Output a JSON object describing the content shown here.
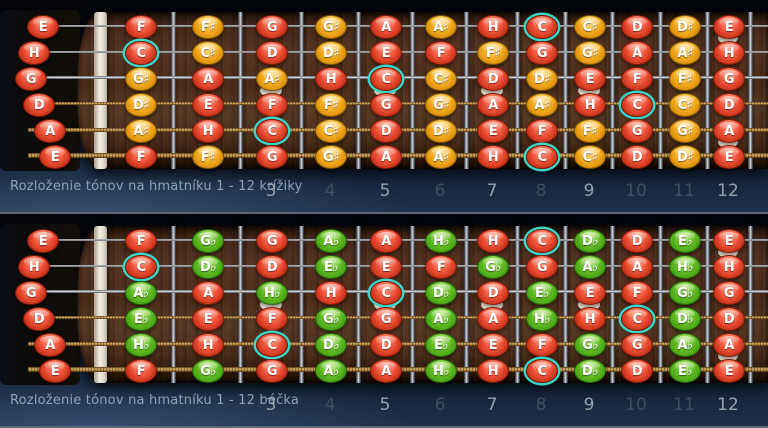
{
  "colors": {
    "natural_red": "#ef5238",
    "sharp_orange": "#f5ae22",
    "flat_green": "#63bd25",
    "highlight_ring": "#38d7c9",
    "caption_text": "#8fa2b8",
    "caption_text_hex": "#8ea2b8",
    "fret_number_bright": "#95a1ad",
    "fret_number_dim": "#3d4e60"
  },
  "highlighted_note": "C",
  "fretboards": [
    {
      "id": "sharps",
      "label": "Rozloženie tónov na hmatníku 1 - 12 krížiky",
      "open_notes": [
        "E",
        "H",
        "G",
        "D",
        "A",
        "E"
      ],
      "strings": [
        {
          "open": "E",
          "notes": [
            "F",
            "F♯",
            "G",
            "G♯",
            "A",
            "A♯",
            "H",
            "C",
            "C♯",
            "D",
            "D♯",
            "E"
          ]
        },
        {
          "open": "H",
          "notes": [
            "C",
            "C♯",
            "D",
            "D♯",
            "E",
            "F",
            "F♯",
            "G",
            "G♯",
            "A",
            "A♯",
            "H"
          ]
        },
        {
          "open": "G",
          "notes": [
            "G♯",
            "A",
            "A♯",
            "H",
            "C",
            "C♯",
            "D",
            "D♯",
            "E",
            "F",
            "F♯",
            "G"
          ]
        },
        {
          "open": "D",
          "notes": [
            "D♯",
            "E",
            "F",
            "F♯",
            "G",
            "G♯",
            "A",
            "A♯",
            "H",
            "C",
            "C♯",
            "D"
          ]
        },
        {
          "open": "A",
          "notes": [
            "A♯",
            "H",
            "C",
            "C♯",
            "D",
            "D♯",
            "E",
            "F",
            "F♯",
            "G",
            "G♯",
            "A"
          ]
        },
        {
          "open": "E",
          "notes": [
            "F",
            "F♯",
            "G",
            "G♯",
            "A",
            "A♯",
            "H",
            "C",
            "C♯",
            "D",
            "D♯",
            "E"
          ]
        }
      ],
      "fret_numbers": [
        {
          "n": "3",
          "bright": true
        },
        {
          "n": "4",
          "bright": false
        },
        {
          "n": "5",
          "bright": true
        },
        {
          "n": "6",
          "bright": false
        },
        {
          "n": "7",
          "bright": true
        },
        {
          "n": "8",
          "bright": false
        },
        {
          "n": "9",
          "bright": true
        },
        {
          "n": "10",
          "bright": false
        },
        {
          "n": "11",
          "bright": false
        },
        {
          "n": "12",
          "bright": true
        }
      ]
    },
    {
      "id": "flats",
      "label": "Rozloženie tónov na hmatníku 1 - 12 béčka",
      "open_notes": [
        "E",
        "H",
        "G",
        "D",
        "A",
        "E"
      ],
      "strings": [
        {
          "open": "E",
          "notes": [
            "F",
            "G♭",
            "G",
            "A♭",
            "A",
            "H♭",
            "H",
            "C",
            "D♭",
            "D",
            "E♭",
            "E"
          ]
        },
        {
          "open": "H",
          "notes": [
            "C",
            "D♭",
            "D",
            "E♭",
            "E",
            "F",
            "G♭",
            "G",
            "A♭",
            "A",
            "H♭",
            "H"
          ]
        },
        {
          "open": "G",
          "notes": [
            "A♭",
            "A",
            "H♭",
            "H",
            "C",
            "D♭",
            "D",
            "E♭",
            "E",
            "F",
            "G♭",
            "G"
          ]
        },
        {
          "open": "D",
          "notes": [
            "E♭",
            "E",
            "F",
            "G♭",
            "G",
            "A♭",
            "A",
            "H♭",
            "H",
            "C",
            "D♭",
            "D"
          ]
        },
        {
          "open": "A",
          "notes": [
            "H♭",
            "H",
            "C",
            "D♭",
            "D",
            "E♭",
            "E",
            "F",
            "G♭",
            "G",
            "A♭",
            "A"
          ]
        },
        {
          "open": "E",
          "notes": [
            "F",
            "G♭",
            "G",
            "A♭",
            "A",
            "H♭",
            "H",
            "C",
            "D♭",
            "D",
            "E♭",
            "E"
          ]
        }
      ],
      "fret_numbers": [
        {
          "n": "3",
          "bright": true
        },
        {
          "n": "4",
          "bright": false
        },
        {
          "n": "5",
          "bright": true
        },
        {
          "n": "6",
          "bright": false
        },
        {
          "n": "7",
          "bright": true
        },
        {
          "n": "8",
          "bright": false
        },
        {
          "n": "9",
          "bright": true
        },
        {
          "n": "10",
          "bright": false
        },
        {
          "n": "11",
          "bright": false
        },
        {
          "n": "12",
          "bright": true
        }
      ]
    }
  ]
}
